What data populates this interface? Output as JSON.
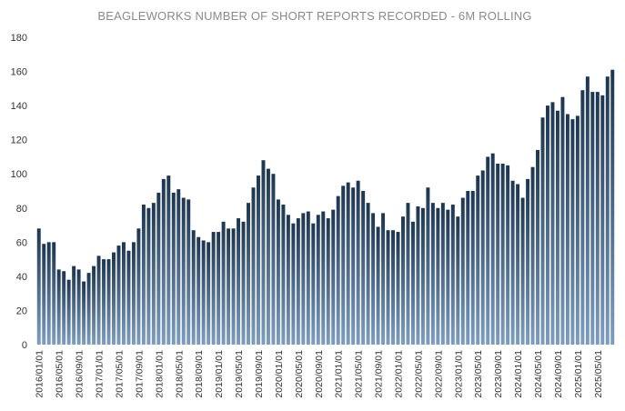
{
  "chart_data": {
    "type": "bar",
    "title": "BEAGLEWORKS NUMBER OF SHORT REPORTS RECORDED - 6M ROLLING",
    "xlabel": "",
    "ylabel": "",
    "ylim": [
      0,
      180
    ],
    "yticks": [
      0,
      20,
      40,
      60,
      80,
      100,
      120,
      140,
      160,
      180
    ],
    "grid": false,
    "legend": "none",
    "colors": {
      "bar_top": "#1c3550",
      "bar_bottom": "#7d9dc0",
      "title": "#8a8a8a",
      "text": "#333333"
    },
    "tick_labels": [
      "2016/01/01",
      "2016/05/01",
      "2016/09/01",
      "2017/01/01",
      "2017/05/01",
      "2017/09/01",
      "2018/01/01",
      "2018/05/01",
      "2018/09/01",
      "2019/01/01",
      "2019/05/01",
      "2019/09/01",
      "2020/01/01",
      "2020/05/01",
      "2020/09/01",
      "2021/01/01",
      "2021/05/01",
      "2021/09/01",
      "2022/01/01",
      "2022/05/01",
      "2022/09/01",
      "2023/01/01",
      "2023/05/01",
      "2023/09/01",
      "2024/01/01",
      "2024/05/01",
      "2024/09/01",
      "2025/01/01",
      "2025/05/01"
    ],
    "categories": [
      "2016/01",
      "2016/02",
      "2016/03",
      "2016/04",
      "2016/05",
      "2016/06",
      "2016/07",
      "2016/08",
      "2016/09",
      "2016/10",
      "2016/11",
      "2016/12",
      "2017/01",
      "2017/02",
      "2017/03",
      "2017/04",
      "2017/05",
      "2017/06",
      "2017/07",
      "2017/08",
      "2017/09",
      "2017/10",
      "2017/11",
      "2017/12",
      "2018/01",
      "2018/02",
      "2018/03",
      "2018/04",
      "2018/05",
      "2018/06",
      "2018/07",
      "2018/08",
      "2018/09",
      "2018/10",
      "2018/11",
      "2018/12",
      "2019/01",
      "2019/02",
      "2019/03",
      "2019/04",
      "2019/05",
      "2019/06",
      "2019/07",
      "2019/08",
      "2019/09",
      "2019/10",
      "2019/11",
      "2019/12",
      "2020/01",
      "2020/02",
      "2020/03",
      "2020/04",
      "2020/05",
      "2020/06",
      "2020/07",
      "2020/08",
      "2020/09",
      "2020/10",
      "2020/11",
      "2020/12",
      "2021/01",
      "2021/02",
      "2021/03",
      "2021/04",
      "2021/05",
      "2021/06",
      "2021/07",
      "2021/08",
      "2021/09",
      "2021/10",
      "2021/11",
      "2021/12",
      "2022/01",
      "2022/02",
      "2022/03",
      "2022/04",
      "2022/05",
      "2022/06",
      "2022/07",
      "2022/08",
      "2022/09",
      "2022/10",
      "2022/11",
      "2022/12",
      "2023/01",
      "2023/02",
      "2023/03",
      "2023/04",
      "2023/05",
      "2023/06",
      "2023/07",
      "2023/08",
      "2023/09",
      "2023/10",
      "2023/11",
      "2023/12",
      "2024/01",
      "2024/02",
      "2024/03",
      "2024/04",
      "2024/05",
      "2024/06",
      "2024/07",
      "2024/08",
      "2024/09",
      "2024/10",
      "2024/11",
      "2024/12",
      "2025/01",
      "2025/02",
      "2025/03",
      "2025/04",
      "2025/05",
      "2025/06",
      "2025/07",
      "2025/08"
    ],
    "values": [
      68,
      59,
      60,
      60,
      44,
      43,
      38,
      46,
      44,
      37,
      42,
      46,
      52,
      50,
      50,
      54,
      58,
      60,
      55,
      60,
      68,
      82,
      80,
      83,
      89,
      97,
      99,
      89,
      91,
      86,
      85,
      67,
      63,
      61,
      60,
      66,
      66,
      72,
      68,
      68,
      74,
      72,
      83,
      92,
      99,
      108,
      103,
      100,
      85,
      82,
      76,
      71,
      74,
      77,
      78,
      71,
      76,
      78,
      74,
      79,
      87,
      93,
      95,
      92,
      96,
      90,
      83,
      77,
      69,
      77,
      67,
      67,
      66,
      75,
      83,
      72,
      81,
      80,
      92,
      83,
      80,
      83,
      79,
      82,
      75,
      86,
      90,
      90,
      99,
      102,
      110,
      112,
      106,
      106,
      105,
      96,
      94,
      86,
      97,
      104,
      114,
      133,
      140,
      142,
      137,
      145,
      135,
      132,
      134,
      149,
      157,
      148,
      148,
      146,
      157,
      161
    ]
  }
}
